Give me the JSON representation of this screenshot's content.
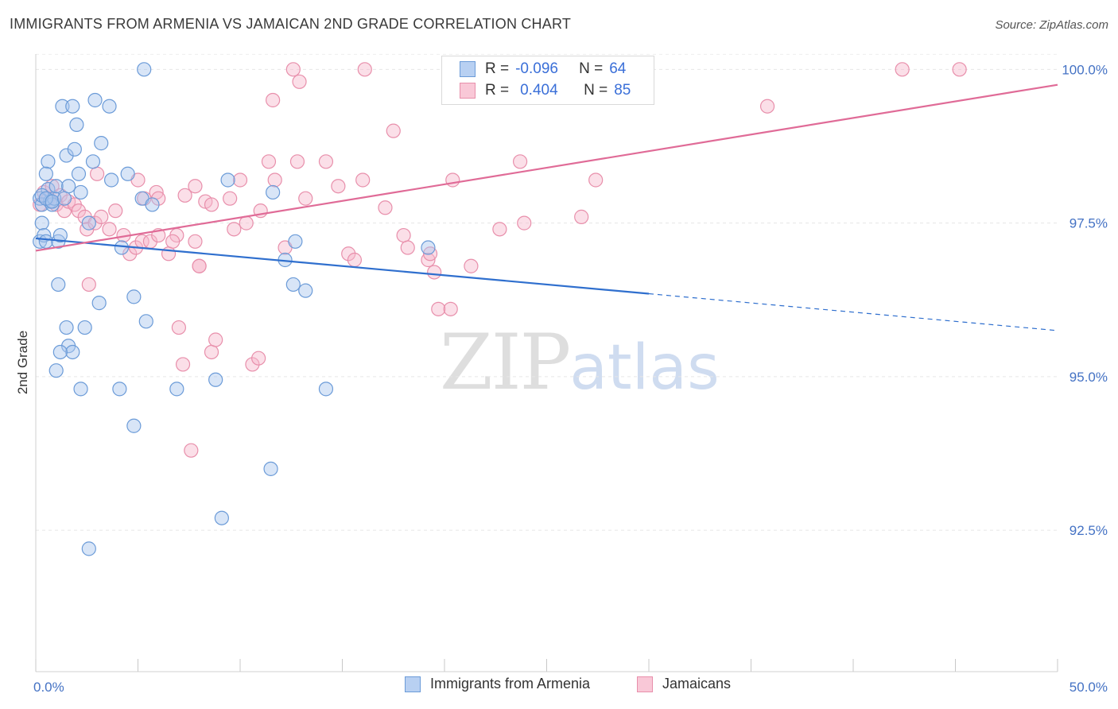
{
  "title": "IMMIGRANTS FROM ARMENIA VS JAMAICAN 2ND GRADE CORRELATION CHART",
  "source": "Source: ZipAtlas.com",
  "watermark": {
    "zip": "ZIP",
    "atlas": "atlas"
  },
  "legend": {
    "r_label": "R =",
    "n_label": "N =",
    "series1": {
      "r": "-0.096",
      "n": "64"
    },
    "series2": {
      "r": "0.404",
      "n": "85"
    }
  },
  "bottom_legend": {
    "series1": "Immigrants from Armenia",
    "series2": "Jamaicans"
  },
  "colors": {
    "blue_fill": "#a9c6ee",
    "blue_stroke": "#6b9bd8",
    "blue_line": "#2f6fce",
    "pink_fill": "#f6b8cb",
    "pink_stroke": "#e88fab",
    "pink_line": "#e06b97",
    "tick_text": "#4472c4"
  },
  "chart_data": {
    "type": "scatter",
    "title": "IMMIGRANTS FROM ARMENIA VS JAMAICAN 2ND GRADE CORRELATION CHART",
    "xlabel": "",
    "ylabel": "2nd Grade",
    "xlim": [
      0,
      50
    ],
    "ylim": [
      90.2,
      100.25
    ],
    "x_tick_labels": [
      "0.0%",
      "50.0%"
    ],
    "y_ticks": [
      92.5,
      95.0,
      97.5,
      100.0
    ],
    "y_tick_labels": [
      "92.5%",
      "95.0%",
      "97.5%",
      "100.0%"
    ],
    "grid": true,
    "legend_position": "top-center",
    "series": [
      {
        "name": "Immigrants from Armenia",
        "color": "#a9c6ee",
        "r": -0.096,
        "n": 64,
        "trend": {
          "x0": 0,
          "y0": 97.25,
          "x1": 30,
          "y1": 96.35,
          "dash_x1": 50,
          "dash_y1": 95.75
        },
        "points": [
          [
            0.2,
            97.9
          ],
          [
            0.3,
            97.8
          ],
          [
            0.3,
            97.5
          ],
          [
            0.2,
            97.2
          ],
          [
            0.4,
            97.3
          ],
          [
            0.5,
            97.2
          ],
          [
            0.6,
            98.5
          ],
          [
            0.5,
            98.3
          ],
          [
            0.6,
            98.05
          ],
          [
            0.7,
            97.85
          ],
          [
            0.8,
            97.8
          ],
          [
            0.9,
            97.9
          ],
          [
            1.0,
            98.1
          ],
          [
            1.1,
            97.2
          ],
          [
            1.2,
            97.3
          ],
          [
            1.1,
            96.5
          ],
          [
            1.3,
            99.4
          ],
          [
            1.5,
            98.6
          ],
          [
            1.6,
            98.1
          ],
          [
            1.8,
            99.4
          ],
          [
            1.5,
            95.8
          ],
          [
            1.6,
            95.5
          ],
          [
            1.8,
            95.4
          ],
          [
            1.2,
            95.4
          ],
          [
            1.0,
            95.1
          ],
          [
            1.9,
            98.7
          ],
          [
            2.0,
            99.1
          ],
          [
            2.1,
            98.3
          ],
          [
            2.2,
            98.0
          ],
          [
            2.4,
            95.8
          ],
          [
            2.2,
            94.8
          ],
          [
            2.6,
            97.5
          ],
          [
            2.8,
            98.5
          ],
          [
            2.9,
            99.5
          ],
          [
            3.2,
            98.8
          ],
          [
            3.6,
            99.4
          ],
          [
            3.1,
            96.2
          ],
          [
            3.7,
            98.2
          ],
          [
            4.2,
            97.1
          ],
          [
            4.5,
            98.3
          ],
          [
            4.8,
            96.3
          ],
          [
            4.1,
            94.8
          ],
          [
            4.8,
            94.2
          ],
          [
            5.2,
            97.9
          ],
          [
            5.4,
            95.9
          ],
          [
            5.7,
            97.8
          ],
          [
            5.3,
            100.0
          ],
          [
            6.9,
            94.8
          ],
          [
            2.6,
            92.2
          ],
          [
            8.8,
            94.95
          ],
          [
            9.4,
            98.2
          ],
          [
            9.1,
            92.7
          ],
          [
            11.6,
            98.0
          ],
          [
            12.2,
            96.9
          ],
          [
            12.7,
            97.2
          ],
          [
            12.6,
            96.5
          ],
          [
            13.2,
            96.4
          ],
          [
            11.5,
            93.5
          ],
          [
            14.2,
            94.8
          ],
          [
            19.2,
            97.1
          ],
          [
            0.3,
            97.95
          ],
          [
            0.5,
            97.9
          ],
          [
            0.8,
            97.85
          ],
          [
            1.4,
            97.9
          ]
        ]
      },
      {
        "name": "Jamaicans",
        "color": "#f6b8cb",
        "r": 0.404,
        "n": 85,
        "trend": {
          "x0": 0,
          "y0": 97.05,
          "x1": 50,
          "y1": 99.75
        },
        "points": [
          [
            0.2,
            97.8
          ],
          [
            0.4,
            98.0
          ],
          [
            0.6,
            97.9
          ],
          [
            0.8,
            98.1
          ],
          [
            1.0,
            97.8
          ],
          [
            1.2,
            97.95
          ],
          [
            1.4,
            97.7
          ],
          [
            1.6,
            97.85
          ],
          [
            1.9,
            97.8
          ],
          [
            2.1,
            97.7
          ],
          [
            2.4,
            97.6
          ],
          [
            2.5,
            97.4
          ],
          [
            2.9,
            97.5
          ],
          [
            3.0,
            98.3
          ],
          [
            3.2,
            97.6
          ],
          [
            3.6,
            97.4
          ],
          [
            3.9,
            97.7
          ],
          [
            4.3,
            97.3
          ],
          [
            4.6,
            97.0
          ],
          [
            4.9,
            97.1
          ],
          [
            5.2,
            97.2
          ],
          [
            5.6,
            97.2
          ],
          [
            5.9,
            98.0
          ],
          [
            6.0,
            97.3
          ],
          [
            6.5,
            97.0
          ],
          [
            6.9,
            97.3
          ],
          [
            7.3,
            97.95
          ],
          [
            7.8,
            98.1
          ],
          [
            7.8,
            97.2
          ],
          [
            8.0,
            96.8
          ],
          [
            8.3,
            97.85
          ],
          [
            8.6,
            97.8
          ],
          [
            9.5,
            97.9
          ],
          [
            9.7,
            97.4
          ],
          [
            10.0,
            98.2
          ],
          [
            10.3,
            97.5
          ],
          [
            11.0,
            97.7
          ],
          [
            11.4,
            98.5
          ],
          [
            11.7,
            98.2
          ],
          [
            12.2,
            97.1
          ],
          [
            12.8,
            98.5
          ],
          [
            13.2,
            97.9
          ],
          [
            14.2,
            98.5
          ],
          [
            14.8,
            98.1
          ],
          [
            15.3,
            97.0
          ],
          [
            15.6,
            96.9
          ],
          [
            16.0,
            98.2
          ],
          [
            16.1,
            100.0
          ],
          [
            17.1,
            97.75
          ],
          [
            17.5,
            99.0
          ],
          [
            18.0,
            97.3
          ],
          [
            18.2,
            97.1
          ],
          [
            19.2,
            96.9
          ],
          [
            19.3,
            97.0
          ],
          [
            19.5,
            96.7
          ],
          [
            19.7,
            96.1
          ],
          [
            20.3,
            96.1
          ],
          [
            20.4,
            98.2
          ],
          [
            21.3,
            96.8
          ],
          [
            22.7,
            97.4
          ],
          [
            23.7,
            98.5
          ],
          [
            23.9,
            97.5
          ],
          [
            26.7,
            97.6
          ],
          [
            27.4,
            98.2
          ],
          [
            26.5,
            100.0
          ],
          [
            27.7,
            100.0
          ],
          [
            12.6,
            100.0
          ],
          [
            12.9,
            99.8
          ],
          [
            11.6,
            99.5
          ],
          [
            5.0,
            98.2
          ],
          [
            5.3,
            97.9
          ],
          [
            6.0,
            97.9
          ],
          [
            6.7,
            97.2
          ],
          [
            7.0,
            95.8
          ],
          [
            7.2,
            95.2
          ],
          [
            7.6,
            93.8
          ],
          [
            8.6,
            95.4
          ],
          [
            8.8,
            95.6
          ],
          [
            8.0,
            96.8
          ],
          [
            10.6,
            95.2
          ],
          [
            10.9,
            95.3
          ],
          [
            42.4,
            100.0
          ],
          [
            45.2,
            100.0
          ],
          [
            35.8,
            99.4
          ],
          [
            2.6,
            96.5
          ]
        ]
      }
    ]
  }
}
